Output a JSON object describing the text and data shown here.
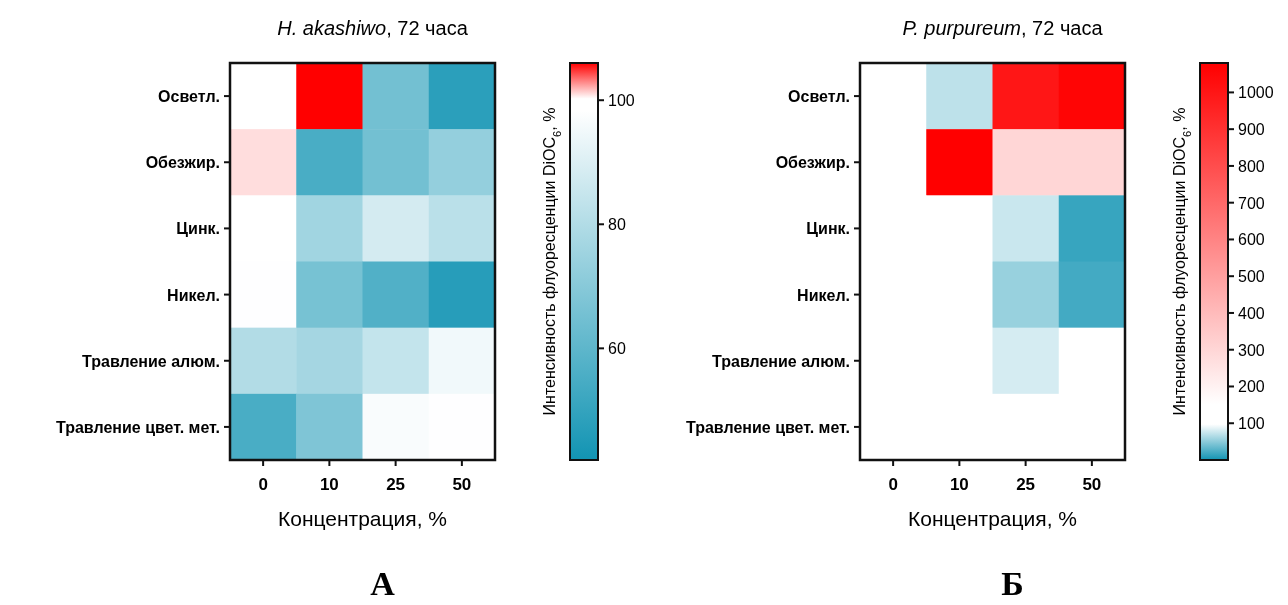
{
  "chart_data": [
    {
      "type": "heatmap",
      "title": "H. akashiwo, 72 часа",
      "xlabel": "Концентрация, %",
      "clabel": "Интенсивность флуоресценции DiOC$_{6}$, %",
      "categories": [
        "0",
        "10",
        "25",
        "50"
      ],
      "y_categories": [
        "Осветл.",
        "Обезжир.",
        "Цинк.",
        "Никел.",
        "Травление алюм.",
        "Травление цвет. мет."
      ],
      "cells": [
        [
          100,
          106,
          65,
          48
        ],
        [
          101,
          55,
          65,
          73
        ],
        [
          100,
          76,
          88,
          82
        ],
        [
          98,
          66,
          57,
          47
        ],
        [
          80,
          77,
          84,
          95
        ],
        [
          55,
          68,
          97,
          98
        ]
      ],
      "clim": [
        42,
        106
      ],
      "cticks": [
        60,
        80,
        100
      ],
      "annotations": [
        "А"
      ]
    },
    {
      "type": "heatmap",
      "title": "P. purpureum, 72 часа",
      "xlabel": "Концентрация, %",
      "clabel": "Интенсивность флуоресценции DiOC$_{6}$, %",
      "categories": [
        "0",
        "10",
        "25",
        "50"
      ],
      "y_categories": [
        "Осветл.",
        "Обезжир.",
        "Цинк.",
        "Никел.",
        "Травление алюм.",
        "Травление цвет. мет."
      ],
      "cells": [
        [
          100,
          70,
          1000,
          1060
        ],
        [
          130,
          1080,
          300,
          300
        ],
        [
          100,
          110,
          75,
          15
        ],
        [
          100,
          100,
          55,
          20
        ],
        [
          100,
          120,
          80,
          110
        ],
        [
          105,
          130,
          130,
          125
        ]
      ],
      "clim": [
        0,
        1080
      ],
      "cticks": [
        100,
        200,
        300,
        400,
        500,
        600,
        700,
        800,
        900,
        1000
      ],
      "annotations": [
        "Б"
      ]
    }
  ]
}
